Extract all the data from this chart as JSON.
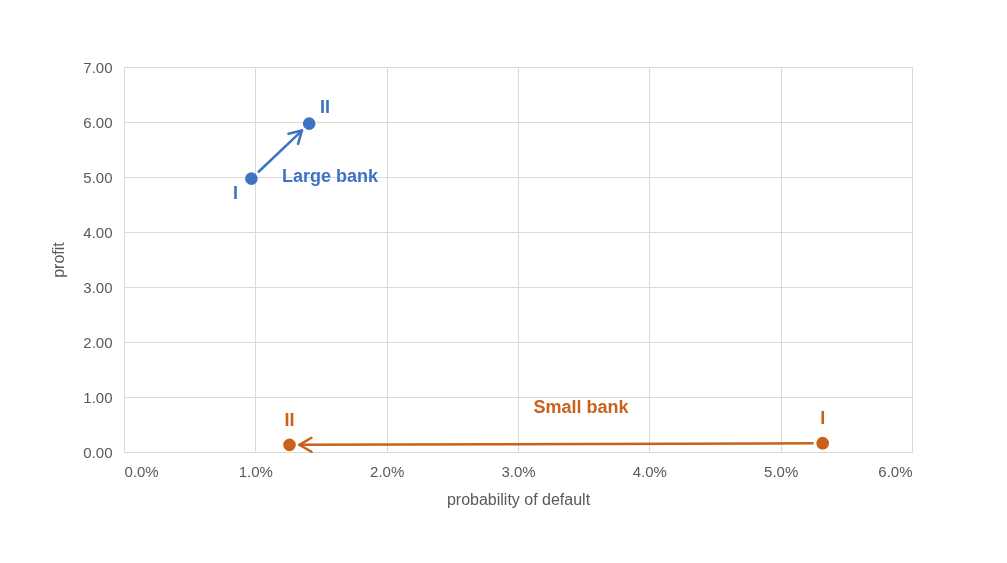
{
  "chart_data": {
    "type": "scatter",
    "xlabel": "probability of default",
    "ylabel": "profit",
    "xlim": [
      0,
      6
    ],
    "xticks": [
      {
        "value": 0,
        "label": "0.0%"
      },
      {
        "value": 1,
        "label": "1.0%"
      },
      {
        "value": 2,
        "label": "2.0%"
      },
      {
        "value": 3,
        "label": "3.0%"
      },
      {
        "value": 4,
        "label": "4.0%"
      },
      {
        "value": 5,
        "label": "5.0%"
      },
      {
        "value": 6,
        "label": "6.0%"
      }
    ],
    "ylim": [
      0,
      7
    ],
    "yticks": [
      {
        "value": 0,
        "label": "0.00"
      },
      {
        "value": 1,
        "label": "1.00"
      },
      {
        "value": 2,
        "label": "2.00"
      },
      {
        "value": 3,
        "label": "3.00"
      },
      {
        "value": 4,
        "label": "4.00"
      },
      {
        "value": 5,
        "label": "5.00"
      },
      {
        "value": 6,
        "label": "6.00"
      },
      {
        "value": 7,
        "label": "7.00"
      }
    ],
    "grid": true,
    "marker": "circle",
    "series": [
      {
        "name": "Large bank",
        "color": "#3f72c4",
        "x": [
          0.97,
          1.41
        ],
        "values": [
          4.97,
          5.97
        ]
      },
      {
        "name": "Small bank",
        "color": "#c8611b",
        "x": [
          5.32,
          1.26
        ],
        "values": [
          0.16,
          0.13
        ]
      }
    ],
    "annotations": [
      {
        "text": "I",
        "x": 0.97,
        "y": 4.97
      },
      {
        "text": "II",
        "x": 1.41,
        "y": 5.97
      },
      {
        "text": "I",
        "x": 5.32,
        "y": 0.16
      },
      {
        "text": "II",
        "x": 1.26,
        "y": 0.13
      }
    ]
  }
}
